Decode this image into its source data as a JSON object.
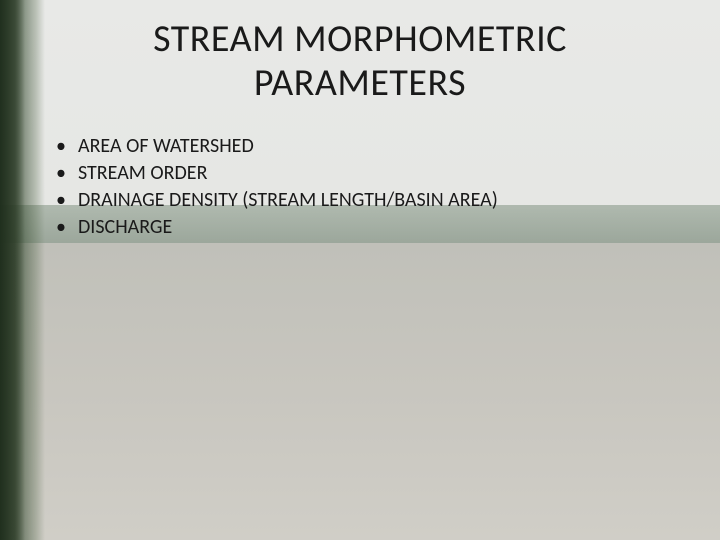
{
  "title_line1": "STREAM MORPHOMETRIC",
  "title_line2": "PARAMETERS",
  "bullets": {
    "item0": "AREA OF WATERSHED",
    "item1": "STREAM ORDER",
    "item2": "DRAINAGE DENSITY (STREAM LENGTH/BASIN AREA)",
    "item3": "DISCHARGE"
  },
  "colors": {
    "text": "#1a1a1a",
    "sky": "#e8e9e7",
    "water": "#c8c6bf",
    "foliage": "#3a4d32"
  }
}
